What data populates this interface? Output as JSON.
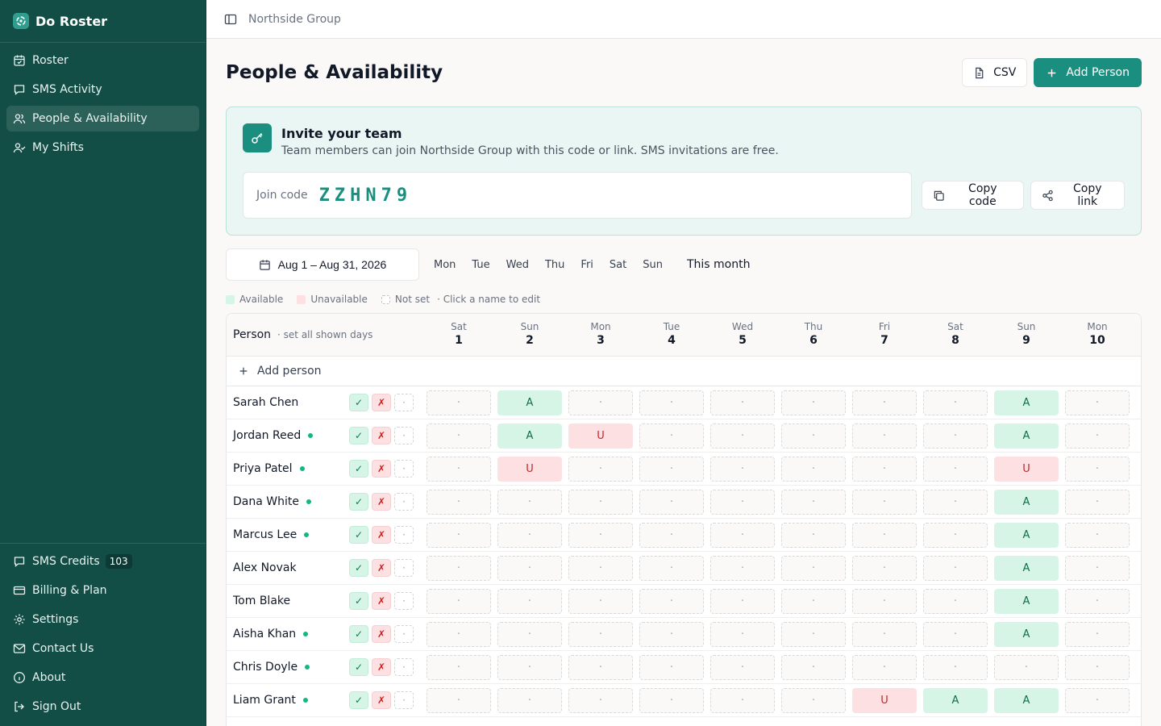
{
  "app": {
    "name": "Do Roster"
  },
  "nav": {
    "items": [
      {
        "label": "Roster",
        "icon": "calendar-icon"
      },
      {
        "label": "SMS Activity",
        "icon": "message-icon"
      },
      {
        "label": "People & Availability",
        "icon": "users-icon",
        "active": true
      },
      {
        "label": "My Shifts",
        "icon": "user-check-icon"
      }
    ],
    "bottom": [
      {
        "label": "SMS Credits",
        "icon": "message-icon",
        "badge": "103"
      },
      {
        "label": "Billing & Plan",
        "icon": "credit-card-icon"
      },
      {
        "label": "Settings",
        "icon": "gear-icon"
      },
      {
        "label": "Contact Us",
        "icon": "mail-icon"
      },
      {
        "label": "About",
        "icon": "info-icon"
      },
      {
        "label": "Sign Out",
        "icon": "logout-icon"
      }
    ]
  },
  "topbar": {
    "org": "Northside Group"
  },
  "page": {
    "title": "People & Availability",
    "csv_label": "CSV",
    "add_person_label": "Add Person"
  },
  "invite": {
    "title": "Invite your team",
    "subtitle": "Team members can join Northside Group with this code or link. SMS invitations are free.",
    "code_label": "Join code",
    "code": "ZZHN79",
    "copy_code": "Copy code",
    "copy_link": "Copy link"
  },
  "filters": {
    "date_range": "Aug 1 – Aug 31, 2026",
    "weekdays": [
      "Mon",
      "Tue",
      "Wed",
      "Thu",
      "Fri",
      "Sat",
      "Sun"
    ],
    "this_month": "This month"
  },
  "legend": {
    "available": "Available",
    "unavailable": "Unavailable",
    "not_set": "Not set",
    "hint": "· Click a name to edit"
  },
  "grid": {
    "person_header": "Person",
    "set_all": "· set all shown days",
    "add_person": "Add person",
    "quick": {
      "yes": "✓",
      "no": "✗",
      "none": "·"
    },
    "empty_mark": "·",
    "days": [
      {
        "dow": "Sat",
        "num": "1"
      },
      {
        "dow": "Sun",
        "num": "2"
      },
      {
        "dow": "Mon",
        "num": "3"
      },
      {
        "dow": "Tue",
        "num": "4"
      },
      {
        "dow": "Wed",
        "num": "5"
      },
      {
        "dow": "Thu",
        "num": "6"
      },
      {
        "dow": "Fri",
        "num": "7"
      },
      {
        "dow": "Sat",
        "num": "8"
      },
      {
        "dow": "Sun",
        "num": "9"
      },
      {
        "dow": "Mon",
        "num": "10"
      }
    ],
    "people": [
      {
        "name": "Sarah Chen",
        "online": false,
        "cells": [
          "",
          "A",
          "",
          "",
          "",
          "",
          "",
          "",
          "A",
          ""
        ]
      },
      {
        "name": "Jordan Reed",
        "online": true,
        "cells": [
          "",
          "A",
          "U",
          "",
          "",
          "",
          "",
          "",
          "A",
          ""
        ]
      },
      {
        "name": "Priya Patel",
        "online": true,
        "cells": [
          "",
          "U",
          "",
          "",
          "",
          "",
          "",
          "",
          "U",
          ""
        ]
      },
      {
        "name": "Dana White",
        "online": true,
        "cells": [
          "",
          "",
          "",
          "",
          "",
          "",
          "",
          "",
          "A",
          ""
        ]
      },
      {
        "name": "Marcus Lee",
        "online": true,
        "cells": [
          "",
          "",
          "",
          "",
          "",
          "",
          "",
          "",
          "A",
          ""
        ]
      },
      {
        "name": "Alex Novak",
        "online": false,
        "cells": [
          "",
          "",
          "",
          "",
          "",
          "",
          "",
          "",
          "A",
          ""
        ]
      },
      {
        "name": "Tom Blake",
        "online": false,
        "cells": [
          "",
          "",
          "",
          "",
          "",
          "",
          "",
          "",
          "A",
          ""
        ]
      },
      {
        "name": "Aisha Khan",
        "online": true,
        "cells": [
          "",
          "",
          "",
          "",
          "",
          "",
          "",
          "",
          "A",
          ""
        ]
      },
      {
        "name": "Chris Doyle",
        "online": true,
        "cells": [
          "",
          "",
          "",
          "",
          "",
          "",
          "",
          "",
          "",
          ""
        ]
      },
      {
        "name": "Liam Grant",
        "online": true,
        "cells": [
          "",
          "",
          "",
          "",
          "",
          "",
          "U",
          "A",
          "A",
          ""
        ]
      }
    ]
  }
}
